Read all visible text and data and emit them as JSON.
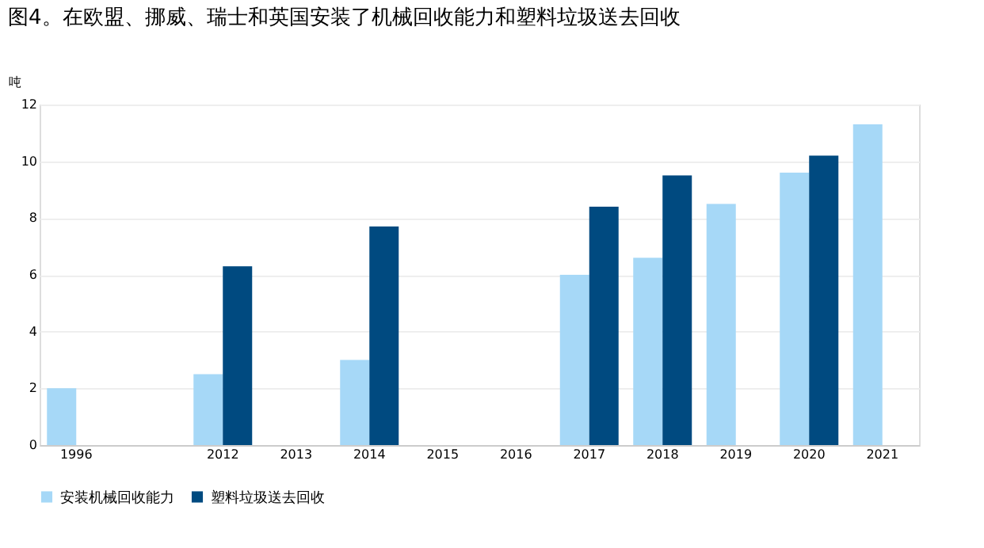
{
  "chart_data": {
    "type": "bar",
    "title": "图4。在欧盟、挪威、瑞士和英国安装了机械回收能力和塑料垃圾送去回收",
    "ylabel": "吨",
    "categories": [
      "1996",
      null,
      "2012",
      "2013",
      "2014",
      "2015",
      "2016",
      "2017",
      "2018",
      "2019",
      "2020",
      "2021"
    ],
    "series": [
      {
        "name": "安装机械回收能力",
        "color": "#a6d8f7",
        "values": [
          2.0,
          null,
          2.5,
          null,
          3.0,
          null,
          null,
          6.0,
          6.6,
          8.5,
          9.6,
          11.3
        ]
      },
      {
        "name": "塑料垃圾送去回收",
        "color": "#004a80",
        "values": [
          null,
          null,
          6.3,
          null,
          7.7,
          null,
          null,
          8.4,
          9.5,
          null,
          10.2,
          null
        ]
      }
    ],
    "ylim": [
      0,
      12
    ],
    "yticks": [
      0,
      2,
      4,
      6,
      8,
      10,
      12
    ],
    "grid": "y",
    "legend": "bottom"
  }
}
